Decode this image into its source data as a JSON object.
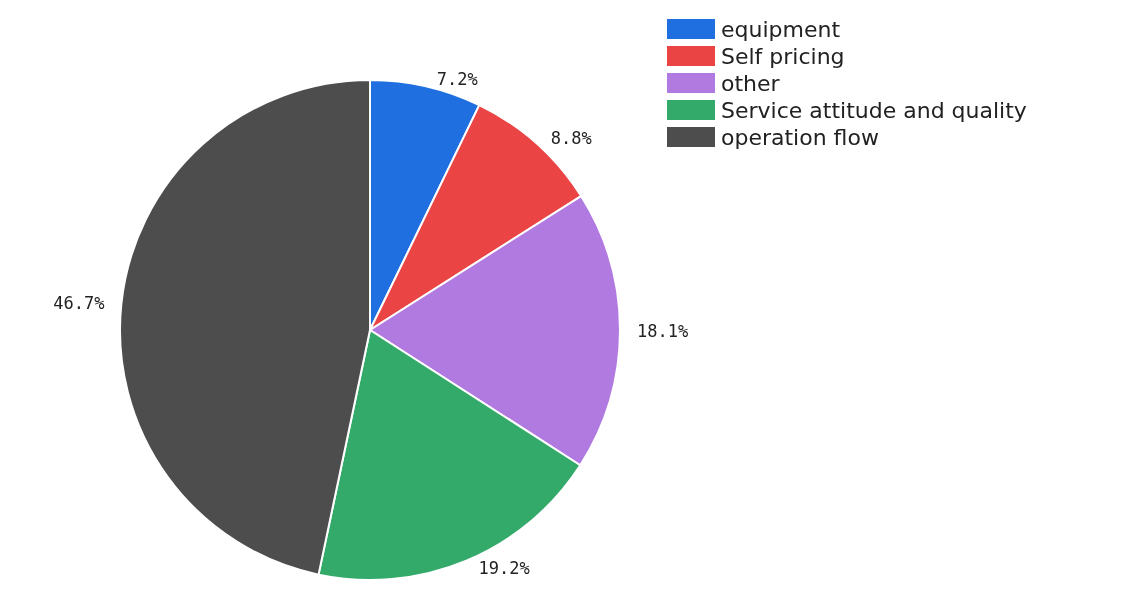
{
  "chart_data": {
    "type": "pie",
    "categories": [
      "equipment",
      "Self pricing",
      "other",
      "Service attitude and quality",
      "operation flow"
    ],
    "values": [
      7.2,
      8.8,
      18.1,
      19.2,
      46.7
    ],
    "colors": [
      "#1f6fe0",
      "#ea4444",
      "#b07ae0",
      "#33aa6a",
      "#4d4d4d"
    ],
    "value_labels": [
      "7.2%",
      "8.8%",
      "18.1%",
      "19.2%",
      "46.7%"
    ],
    "legend": "top right"
  }
}
